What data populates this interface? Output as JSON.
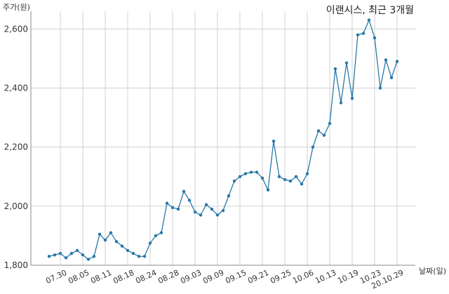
{
  "chart_data": {
    "type": "line",
    "title": "이랜시스, 최근 3개월",
    "ylabel": "주가(원)",
    "xlabel": "날짜(일)",
    "ylim": [
      1800,
      2660
    ],
    "yticks": [
      1800,
      2000,
      2200,
      2400,
      2600
    ],
    "ytick_labels": [
      "1,800",
      "2,000",
      "2,200",
      "2,400",
      "2,600"
    ],
    "xtick_labels": [
      "07.30",
      "08.05",
      "08.11",
      "08.18",
      "08.24",
      "08.28",
      "09.03",
      "09.09",
      "09.15",
      "09.21",
      "09.25",
      "10.06",
      "10.13",
      "10.19",
      "10.23",
      "20.10.29"
    ],
    "grid": true,
    "line_color": "#2878a8",
    "series": [
      {
        "values": [
          1830,
          1835,
          1840,
          1825,
          1840,
          1850,
          1835,
          1820,
          1830,
          1905,
          1885,
          1910,
          1880,
          1865,
          1850,
          1840,
          1830,
          1830,
          1875,
          1900,
          1910,
          2010,
          1995,
          1990,
          2050,
          2020,
          1980,
          1970,
          2005,
          1990,
          1970,
          1985,
          2035,
          2085,
          2100,
          2110,
          2115,
          2115,
          2095,
          2055,
          2220,
          2100,
          2090,
          2085,
          2100,
          2075,
          2110,
          2200,
          2255,
          2240,
          2280,
          2465,
          2350,
          2485,
          2365,
          2580,
          2585,
          2630,
          2570,
          2400,
          2495,
          2435,
          2490
        ]
      }
    ]
  }
}
